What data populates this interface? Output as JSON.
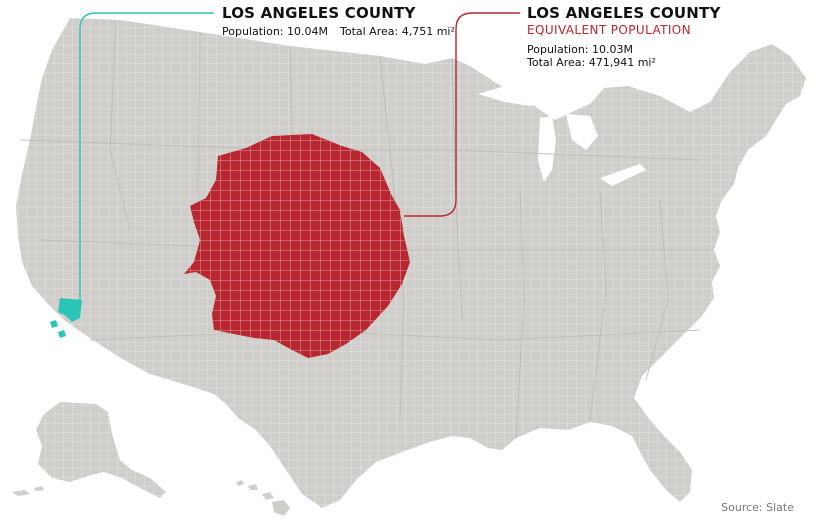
{
  "colors": {
    "land": "#cfcecb",
    "county_lines": "#ffffff",
    "la_county": "#2cc4b6",
    "equivalent_region": "#b8262f",
    "background": "#ffffff"
  },
  "left_callout": {
    "title": "LOS ANGELES COUNTY",
    "population": "Population: 10.04M",
    "area": "Total Area: 4,751 mi²"
  },
  "right_callout": {
    "title": "LOS ANGELES COUNTY",
    "subtitle": "EQUIVALENT POPULATION",
    "population": "Population: 10.03M",
    "area": "Total Area: 471,941 mi²"
  },
  "source": "Source: Slate"
}
